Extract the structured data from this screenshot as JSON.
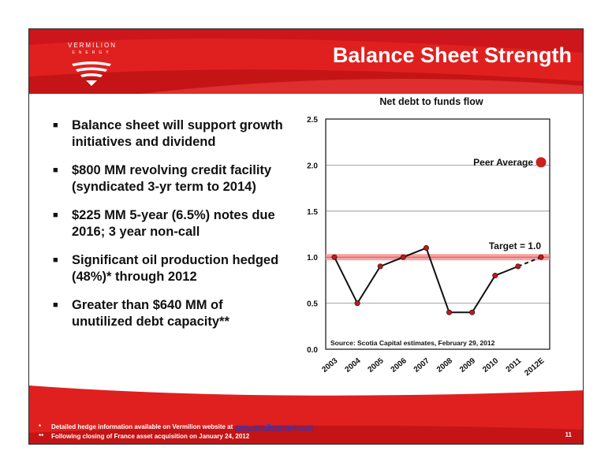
{
  "slide": {
    "title": "Balance Sheet Strength",
    "logo": {
      "word": "VERMILION",
      "sub": "ENERGY"
    },
    "page_number": "11"
  },
  "bullets": [
    {
      "text": "Balance sheet will support growth initiatives and dividend"
    },
    {
      "text": "$800 MM revolving credit facility (syndicated 3-yr term to 2014)"
    },
    {
      "text": "$225 MM 5-year (6.5%) notes due 2016; 3 year non-call"
    },
    {
      "text": "Significant oil production hedged (48%)* through 2012"
    },
    {
      "text": "Greater than $640 MM of unutilized debt capacity**"
    }
  ],
  "footnotes": {
    "first_mark": "*",
    "first_text": "Detailed hedge information available on Vermilion website at",
    "first_link": "www.vermilionenergy.com",
    "second_mark": "**",
    "second_text": "Following closing of France asset acquisition on January 24, 2012"
  },
  "colors": {
    "brand_red": "#e0201f",
    "dark_red": "#b80f12",
    "target_band": "#f39a9a"
  },
  "chart_data": {
    "type": "line",
    "title": "Net debt to funds flow",
    "categories": [
      "2003",
      "2004",
      "2005",
      "2006",
      "2007",
      "2008",
      "2009",
      "2010",
      "2011",
      "2012E"
    ],
    "series": [
      {
        "values": [
          1.0,
          0.5,
          0.9,
          1.0,
          1.1,
          0.4,
          0.4,
          0.8,
          0.9,
          1.0
        ],
        "estimate_from_index": 8
      }
    ],
    "ylim": [
      0,
      2.5
    ],
    "yticks": [
      0.0,
      0.5,
      1.0,
      1.5,
      2.0,
      2.5
    ],
    "ytick_labels": [
      "0.0",
      "0.5",
      "1.0",
      "1.5",
      "2.0",
      "2.5"
    ],
    "grid": true,
    "target": {
      "value": 1.0,
      "label": "Target  = 1.0"
    },
    "peer_average": {
      "value": 2.03,
      "label": "Peer Average"
    },
    "source_note": "Source: Scotia Capital estimates, February 29, 2012"
  }
}
